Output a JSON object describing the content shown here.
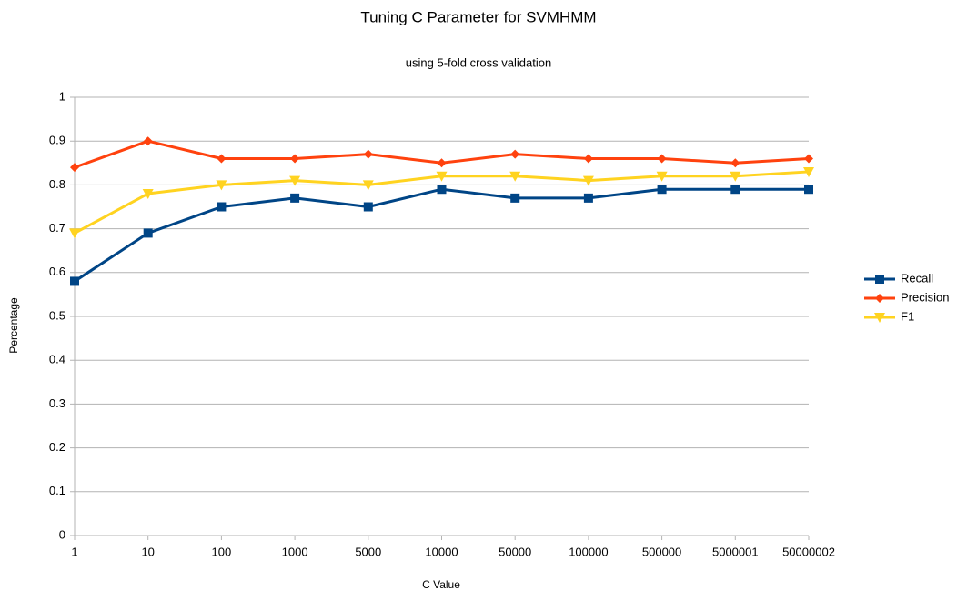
{
  "chart_data": {
    "type": "line",
    "title": "Tuning C Parameter for SVMHMM",
    "subtitle": "using 5-fold cross validation",
    "x_label": "C Value",
    "y_label": "Percentage",
    "categories": [
      "1",
      "10",
      "100",
      "1000",
      "5000",
      "10000",
      "50000",
      "100000",
      "500000",
      "5000001",
      "50000002"
    ],
    "series": [
      {
        "name": "Recall",
        "color": "#004586",
        "marker": "square",
        "values": [
          0.58,
          0.69,
          0.75,
          0.77,
          0.75,
          0.79,
          0.77,
          0.77,
          0.79,
          0.79,
          0.79
        ]
      },
      {
        "name": "Precision",
        "color": "#ff420e",
        "marker": "diamond",
        "values": [
          0.84,
          0.9,
          0.86,
          0.86,
          0.87,
          0.85,
          0.87,
          0.86,
          0.86,
          0.85,
          0.86
        ]
      },
      {
        "name": "F1",
        "color": "#ffd320",
        "marker": "triangle-down",
        "values": [
          0.69,
          0.78,
          0.8,
          0.81,
          0.8,
          0.82,
          0.82,
          0.81,
          0.82,
          0.82,
          0.83
        ]
      }
    ],
    "ylim": [
      0,
      1
    ],
    "yticks": [
      0,
      0.1,
      0.2,
      0.3,
      0.4,
      0.5,
      0.6,
      0.7,
      0.8,
      0.9,
      1
    ],
    "grid": true,
    "legend": "right"
  }
}
